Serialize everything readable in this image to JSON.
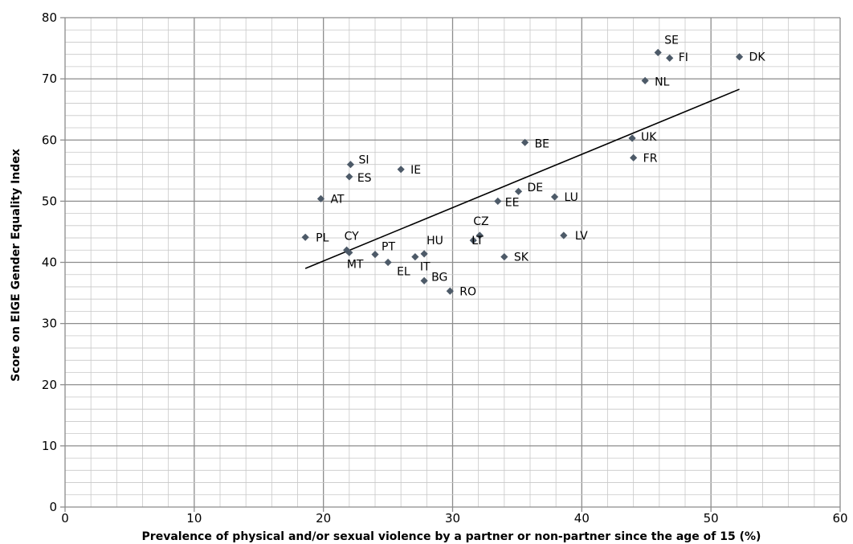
{
  "chart_data": {
    "type": "scatter",
    "xlabel": "Prevalence of physical and/or sexual violence by a partner or non-partner since the age of 15 (%)",
    "ylabel": "Score on EIGE Gender Equality Index",
    "xlim": [
      0,
      60
    ],
    "ylim": [
      0,
      80
    ],
    "x_ticks": [
      "0",
      "10",
      "20",
      "30",
      "40",
      "50",
      "60"
    ],
    "y_ticks": [
      "0",
      "10",
      "20",
      "30",
      "40",
      "50",
      "60",
      "70",
      "80"
    ],
    "grid": true,
    "marker_color": "#4d5a68",
    "points": [
      {
        "label": "SE",
        "x": 45.9,
        "y": 74.3
      },
      {
        "label": "FI",
        "x": 46.8,
        "y": 73.4
      },
      {
        "label": "DK",
        "x": 52.2,
        "y": 73.6
      },
      {
        "label": "NL",
        "x": 44.9,
        "y": 69.7
      },
      {
        "label": "UK",
        "x": 43.9,
        "y": 60.3
      },
      {
        "label": "BE",
        "x": 35.6,
        "y": 59.6
      },
      {
        "label": "FR",
        "x": 44.0,
        "y": 57.1
      },
      {
        "label": "SI",
        "x": 22.1,
        "y": 56.0
      },
      {
        "label": "ES",
        "x": 22.0,
        "y": 54.0
      },
      {
        "label": "IE",
        "x": 26.0,
        "y": 55.2
      },
      {
        "label": "AT",
        "x": 19.8,
        "y": 50.4
      },
      {
        "label": "DE",
        "x": 35.1,
        "y": 51.6
      },
      {
        "label": "LU",
        "x": 37.9,
        "y": 50.7
      },
      {
        "label": "EE",
        "x": 33.5,
        "y": 50.0
      },
      {
        "label": "PL",
        "x": 18.6,
        "y": 44.1
      },
      {
        "label": "CY",
        "x": 21.8,
        "y": 42.0
      },
      {
        "label": "MT",
        "x": 22.0,
        "y": 41.6
      },
      {
        "label": "PT",
        "x": 24.0,
        "y": 41.3
      },
      {
        "label": "EL",
        "x": 25.0,
        "y": 40.0
      },
      {
        "label": "IT",
        "x": 27.1,
        "y": 40.9
      },
      {
        "label": "HU",
        "x": 27.8,
        "y": 41.4
      },
      {
        "label": "CZ",
        "x": 32.1,
        "y": 44.4
      },
      {
        "label": "LT",
        "x": 31.6,
        "y": 43.6
      },
      {
        "label": "SK",
        "x": 34.0,
        "y": 40.9
      },
      {
        "label": "LV",
        "x": 38.6,
        "y": 44.4
      },
      {
        "label": "BG",
        "x": 27.8,
        "y": 37.0
      },
      {
        "label": "RO",
        "x": 29.8,
        "y": 35.3
      }
    ],
    "trendline": {
      "x": [
        18.6,
        52.2
      ],
      "y": [
        39.0,
        68.3
      ]
    }
  }
}
